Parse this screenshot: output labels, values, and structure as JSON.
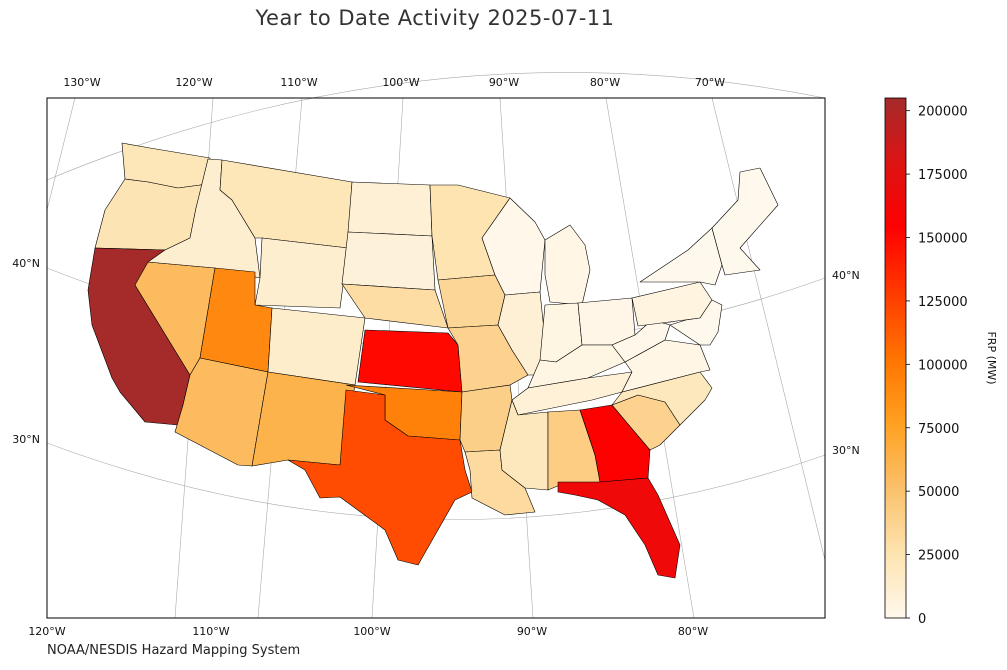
{
  "title": "Year to Date Activity 2025-07-11",
  "credit": "NOAA/NESDIS Hazard Mapping System",
  "colorbar": {
    "label": "FRP (MW)",
    "ticks": [
      "0",
      "25000",
      "50000",
      "75000",
      "100000",
      "125000",
      "150000",
      "175000",
      "200000"
    ],
    "max": 205000,
    "colors": [
      "#fff8ec",
      "#fde3b0",
      "#fbc06a",
      "#ffa020",
      "#ff7400",
      "#ff3a00",
      "#ff0000",
      "#dc1414",
      "#a52a2a"
    ]
  },
  "axes": {
    "top_lon_labels": [
      "130°W",
      "120°W",
      "110°W",
      "100°W",
      "90°W",
      "80°W",
      "70°W"
    ],
    "bottom_lon_labels": [
      "120°W",
      "110°W",
      "100°W",
      "90°W",
      "80°W"
    ],
    "left_lat_labels": [
      "40°N",
      "30°N"
    ],
    "right_lat_labels": [
      "40°N",
      "30°N"
    ]
  },
  "map_data": {
    "type": "choropleth",
    "region": "Contiguous United States",
    "states": [
      {
        "name": "Washington",
        "frp": 22000
      },
      {
        "name": "Oregon",
        "frp": 24000
      },
      {
        "name": "California",
        "frp": 205000
      },
      {
        "name": "Nevada",
        "frp": 55000
      },
      {
        "name": "Idaho",
        "frp": 12000
      },
      {
        "name": "Montana",
        "frp": 22000
      },
      {
        "name": "Wyoming",
        "frp": 12000
      },
      {
        "name": "Utah",
        "frp": 90000
      },
      {
        "name": "Arizona",
        "frp": 55000
      },
      {
        "name": "Colorado",
        "frp": 14000
      },
      {
        "name": "New Mexico",
        "frp": 62000
      },
      {
        "name": "North Dakota",
        "frp": 10000
      },
      {
        "name": "South Dakota",
        "frp": 8000
      },
      {
        "name": "Nebraska",
        "frp": 30000
      },
      {
        "name": "Kansas",
        "frp": 150000
      },
      {
        "name": "Oklahoma",
        "frp": 95000
      },
      {
        "name": "Texas",
        "frp": 120000
      },
      {
        "name": "Minnesota",
        "frp": 25000
      },
      {
        "name": "Iowa",
        "frp": 35000
      },
      {
        "name": "Missouri",
        "frp": 38000
      },
      {
        "name": "Arkansas",
        "frp": 40000
      },
      {
        "name": "Louisiana",
        "frp": 32000
      },
      {
        "name": "Wisconsin",
        "frp": 1000
      },
      {
        "name": "Illinois",
        "frp": 10000
      },
      {
        "name": "Michigan",
        "frp": 3000
      },
      {
        "name": "Indiana",
        "frp": 4000
      },
      {
        "name": "Ohio",
        "frp": 2000
      },
      {
        "name": "Kentucky",
        "frp": 4000
      },
      {
        "name": "Tennessee",
        "frp": 9000
      },
      {
        "name": "Mississippi",
        "frp": 20000
      },
      {
        "name": "Alabama",
        "frp": 42000
      },
      {
        "name": "Georgia",
        "frp": 155000
      },
      {
        "name": "Florida",
        "frp": 165000
      },
      {
        "name": "South Carolina",
        "frp": 38000
      },
      {
        "name": "North Carolina",
        "frp": 20000
      },
      {
        "name": "Virginia",
        "frp": 3000
      },
      {
        "name": "West Virginia",
        "frp": 1000
      },
      {
        "name": "Pennsylvania",
        "frp": 5000
      },
      {
        "name": "New York",
        "frp": 0
      },
      {
        "name": "New England",
        "frp": 0
      },
      {
        "name": "Mid-Atlantic",
        "frp": 0
      }
    ]
  }
}
